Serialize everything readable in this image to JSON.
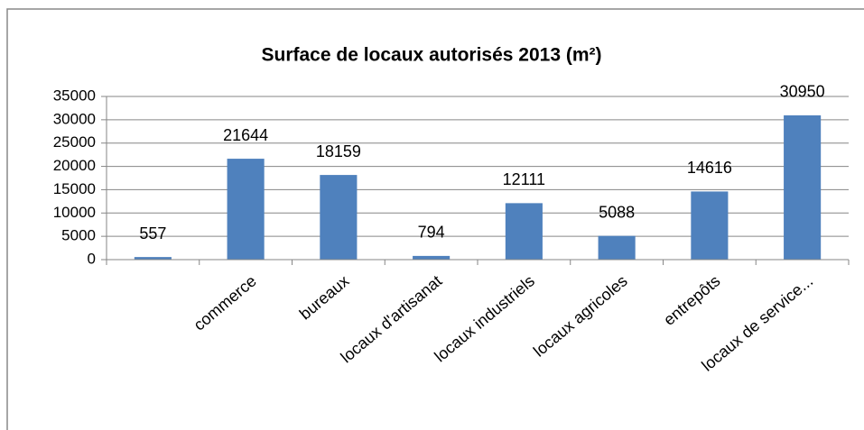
{
  "chart_data": {
    "type": "bar",
    "title": "Surface de locaux autorisés 2013 (m²)",
    "categories": [
      null,
      "commerce",
      "bureaux",
      "locaux d'artisanat",
      "locaux industriels",
      "locaux agricoles",
      "entrepôts",
      "locaux de service..."
    ],
    "values": [
      557,
      21644,
      18159,
      794,
      12111,
      5088,
      14616,
      30950
    ],
    "color": "#4f81bd",
    "ylim": [
      0,
      35000
    ],
    "yticks": [
      0,
      5000,
      10000,
      15000,
      20000,
      25000,
      30000,
      35000
    ],
    "grid": true
  }
}
